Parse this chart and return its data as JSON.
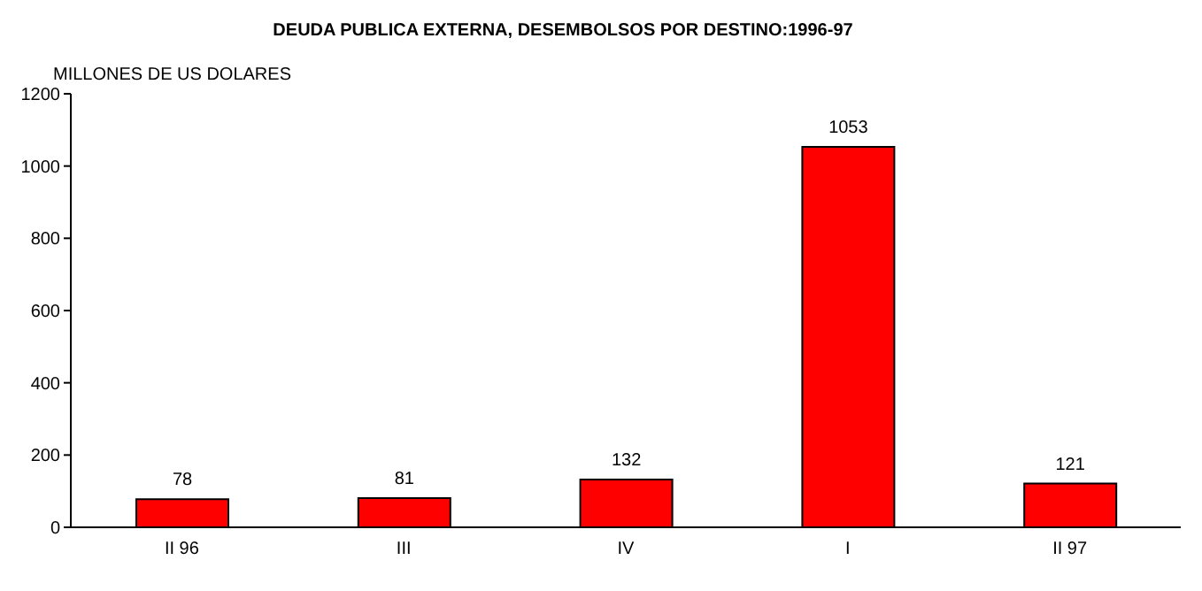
{
  "chart_data": {
    "type": "bar",
    "title": "DEUDA PUBLICA EXTERNA, DESEMBOLSOS POR DESTINO:1996-97",
    "ylabel": "MILLONES DE US DOLARES",
    "categories": [
      "II 96",
      "III",
      "IV",
      "I",
      "II 97"
    ],
    "values": [
      78,
      81,
      132,
      1053,
      121
    ],
    "color": "#ff0000",
    "ylim": [
      0,
      1200
    ],
    "yticks": [
      0,
      200,
      400,
      600,
      800,
      1000,
      1200
    ],
    "grid": false,
    "data_labels": true
  }
}
